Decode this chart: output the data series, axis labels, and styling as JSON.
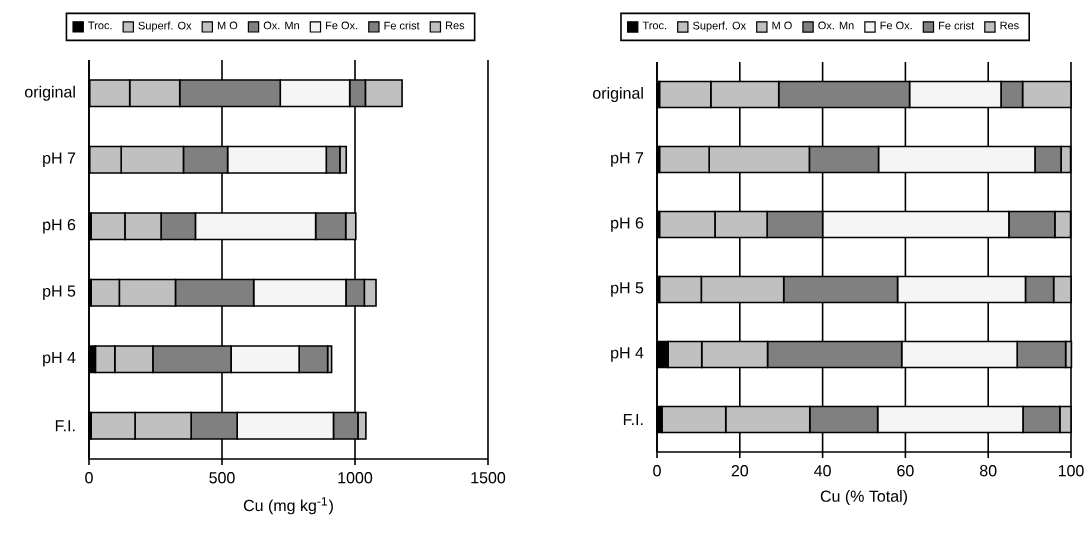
{
  "chart_data": [
    {
      "type": "bar",
      "orientation": "horizontal",
      "stacked": true,
      "categories": [
        "original",
        "pH 7",
        "pH 6",
        "pH 5",
        "pH 4",
        "F.I."
      ],
      "xlabel": "Cu (mg kg$^{-1}$)",
      "xlim": [
        0,
        1500
      ],
      "xticks": [
        0,
        500,
        1000,
        1500
      ],
      "grid": "x",
      "legend": "top",
      "series": [
        {
          "name": "Troc.",
          "color": "#000000",
          "values": [
            2,
            2,
            8,
            8,
            24,
            8
          ]
        },
        {
          "name": "Superf. Ox",
          "color": "#c0c0c0",
          "values": [
            151,
            119,
            127,
            106,
            73,
            165
          ]
        },
        {
          "name": "M O",
          "color": "#c0c0c0",
          "values": [
            188,
            234,
            136,
            211,
            143,
            211
          ]
        },
        {
          "name": "Ox. Mn",
          "color": "#808080",
          "values": [
            378,
            166,
            129,
            294,
            294,
            173
          ]
        },
        {
          "name": "Fe Ox.",
          "color": "#f5f5f5",
          "values": [
            261,
            371,
            452,
            347,
            256,
            362
          ]
        },
        {
          "name": "Fe crist",
          "color": "#808080",
          "values": [
            59,
            51,
            113,
            69,
            107,
            92
          ]
        },
        {
          "name": "Res",
          "color": "#c0c0c0",
          "values": [
            138,
            24,
            38,
            44,
            15,
            30
          ]
        }
      ]
    },
    {
      "type": "bar",
      "orientation": "horizontal",
      "stacked": true,
      "categories": [
        "original",
        "pH 7",
        "pH 6",
        "pH 5",
        "pH 4",
        "F.I."
      ],
      "xlabel": "Cu (% Total)",
      "xlim": [
        0,
        100
      ],
      "xticks": [
        0,
        20,
        40,
        60,
        80,
        100
      ],
      "grid": "x",
      "legend": "top",
      "series": [
        {
          "name": "Troc.",
          "color": "#000000",
          "values": [
            0.6,
            0.6,
            0.6,
            0.6,
            2.7,
            1.2
          ]
        },
        {
          "name": "Superf. Ox",
          "color": "#c0c0c0",
          "values": [
            12.4,
            12.0,
            13.4,
            10.1,
            8.1,
            15.4
          ]
        },
        {
          "name": "M O",
          "color": "#c0c0c0",
          "values": [
            16.4,
            24.2,
            12.6,
            19.9,
            15.9,
            20.3
          ]
        },
        {
          "name": "Ox. Mn",
          "color": "#808080",
          "values": [
            31.6,
            16.7,
            13.4,
            27.5,
            32.4,
            16.4
          ]
        },
        {
          "name": "Fe Ox.",
          "color": "#f5f5f5",
          "values": [
            22.1,
            37.8,
            45.0,
            30.9,
            27.9,
            35.1
          ]
        },
        {
          "name": "Fe crist",
          "color": "#808080",
          "values": [
            5.2,
            6.3,
            11.1,
            6.8,
            11.7,
            8.9
          ]
        },
        {
          "name": "Res",
          "color": "#c0c0c0",
          "values": [
            11.7,
            2.3,
            3.8,
            4.2,
            1.4,
            2.7
          ]
        }
      ]
    }
  ]
}
